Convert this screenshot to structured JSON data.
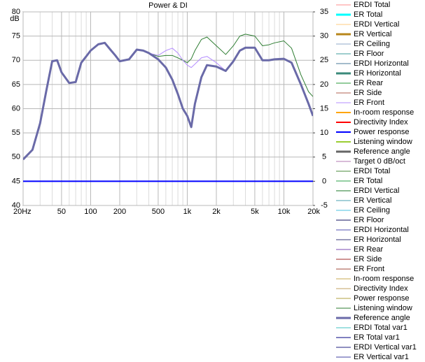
{
  "chart_data": {
    "type": "line",
    "title": "Power & DI",
    "ylabel": "dB",
    "xscale": "log",
    "grid": true,
    "xlim": [
      20,
      20000
    ],
    "xticks": [
      {
        "value": 20,
        "label": "20Hz"
      },
      50,
      100,
      200,
      500,
      {
        "value": 1000,
        "label": "1k"
      },
      {
        "value": 2000,
        "label": "2k"
      },
      {
        "value": 5000,
        "label": "5k"
      },
      {
        "value": 10000,
        "label": "10k"
      },
      {
        "value": 20000,
        "label": "20k"
      }
    ],
    "xminorticks": [
      30,
      40,
      60,
      70,
      80,
      90,
      300,
      400,
      600,
      700,
      800,
      900,
      3000,
      4000,
      6000,
      7000,
      8000,
      9000
    ],
    "ylim": [
      40,
      80
    ],
    "yticks": [
      40,
      45,
      50,
      55,
      60,
      65,
      70,
      75,
      80
    ],
    "y2lim": [
      -5,
      35
    ],
    "y2ticks": [
      -5,
      0,
      5,
      10,
      15,
      20,
      25,
      30,
      35
    ],
    "x": [
      20,
      25,
      30,
      35,
      40,
      45,
      50,
      60,
      70,
      80,
      90,
      100,
      120,
      140,
      160,
      180,
      200,
      250,
      300,
      350,
      400,
      500,
      600,
      700,
      800,
      900,
      1000,
      1100,
      1200,
      1400,
      1600,
      2000,
      2500,
      3000,
      3500,
      4000,
      5000,
      6000,
      7000,
      8000,
      10000,
      12000,
      15000,
      18000,
      20000
    ],
    "series": [
      {
        "name": "ERDI Total",
        "color": "#ff8c8c"
      },
      {
        "name": "ER Total",
        "color": "#00ffff",
        "width": 3
      },
      {
        "name": "ERDI Vertical",
        "color": "#ffcc80"
      },
      {
        "name": "ER Vertical",
        "color": "#b8861b",
        "width": 3
      },
      {
        "name": "ER Ceiling",
        "color": "#8fa8c8"
      },
      {
        "name": "ER Floor",
        "color": "#3c9c9c"
      },
      {
        "name": "ERDI Horizontal",
        "color": "#4a7a9a"
      },
      {
        "name": "ER Horizontal",
        "color": "#3a8a7a",
        "width": 3
      },
      {
        "name": "ER Rear",
        "color": "#2a9a3a"
      },
      {
        "name": "ER Side",
        "color": "#b06050"
      },
      {
        "name": "ER Front",
        "color": "#b48cff",
        "values": [
          49.5,
          51.5,
          57,
          64,
          69.8,
          70,
          67.5,
          65.3,
          65.5,
          69.5,
          70.8,
          72,
          73.3,
          73.6,
          72.2,
          71,
          69.8,
          70.2,
          72.2,
          72,
          71.5,
          71,
          72,
          72.5,
          71.5,
          70,
          69,
          68.5,
          69.2,
          70.5,
          70.8,
          69.5,
          67.8,
          69.8,
          72,
          72.6,
          72.6,
          70,
          70,
          70.2,
          70.3,
          69.5,
          65,
          61,
          58.5
        ]
      },
      {
        "name": "In-room response",
        "color": "#ffa500",
        "width": 2
      },
      {
        "name": "Directivity Index",
        "color": "#ff0000",
        "width": 2
      },
      {
        "name": "Power response",
        "color": "#0000ff",
        "width": 2,
        "values": [
          45,
          45,
          45,
          45,
          45,
          45,
          45,
          45,
          45,
          45,
          45,
          45,
          45,
          45,
          45,
          45,
          45,
          45,
          45,
          45,
          45,
          45,
          45,
          45,
          45,
          45,
          45,
          45,
          45,
          45,
          45,
          45,
          45,
          45,
          45,
          45,
          45,
          45,
          45,
          45,
          45,
          45,
          45,
          45,
          45
        ]
      },
      {
        "name": "Listening window",
        "color": "#9acd32",
        "width": 2
      },
      {
        "name": "Reference angle",
        "color": "#666666",
        "width": 3
      },
      {
        "name": "Target 0 dB/oct",
        "color": "#b07ab0"
      },
      {
        "name": "ERDI Total",
        "color": "#4a8a3a"
      },
      {
        "name": "ER Total",
        "color": "#2aa04a"
      },
      {
        "name": "ERDI Vertical",
        "color": "#1e7a2a"
      },
      {
        "name": "ER Vertical",
        "color": "#4aa0b0"
      },
      {
        "name": "ER Ceiling",
        "color": "#4ac0e0"
      },
      {
        "name": "ER Floor",
        "color": "#101060"
      },
      {
        "name": "ERDI Horizontal",
        "color": "#5050b0"
      },
      {
        "name": "ER Horizontal",
        "color": "#3a3a7a"
      },
      {
        "name": "ER Rear",
        "color": "#7a4ab0"
      },
      {
        "name": "ER Side",
        "color": "#a02a2a"
      },
      {
        "name": "ER Front",
        "color": "#a04a3a"
      },
      {
        "name": "In-room response",
        "color": "#c8a850"
      },
      {
        "name": "Directivity Index",
        "color": "#c0a060"
      },
      {
        "name": "Power response",
        "color": "#b0a040"
      },
      {
        "name": "Listening window",
        "color": "#2e7d32",
        "values": [
          49.5,
          51.5,
          57,
          64,
          69.8,
          70,
          67.5,
          65.3,
          65.5,
          69.5,
          70.8,
          72,
          73.3,
          73.6,
          72.2,
          71,
          69.8,
          70.2,
          72.2,
          72,
          71.5,
          70.8,
          71,
          71,
          70.5,
          70,
          69.5,
          70.3,
          72,
          74.3,
          74.8,
          73,
          71.2,
          73,
          75,
          75.4,
          75,
          73,
          73.2,
          73.6,
          74,
          72.5,
          67,
          63.5,
          62.5
        ]
      },
      {
        "name": "Reference angle",
        "color": "#6a6aa8",
        "width": 3,
        "values": [
          49.5,
          51.5,
          57,
          64,
          69.8,
          70,
          67.5,
          65.3,
          65.5,
          69.5,
          70.8,
          72,
          73.3,
          73.6,
          72.2,
          71,
          69.8,
          70.2,
          72.2,
          72,
          71.5,
          70.2,
          68.5,
          66,
          63,
          60,
          58.5,
          56.2,
          61,
          66.5,
          69,
          68.7,
          67.8,
          69.8,
          72,
          72.6,
          72.6,
          70,
          70,
          70.2,
          70.3,
          69.5,
          65,
          61,
          58.5
        ]
      },
      {
        "name": "ERDI Total  var1",
        "color": "#40c0c0"
      },
      {
        "name": "ER Total  var1",
        "color": "#000080"
      },
      {
        "name": "ERDI Vertical  var1",
        "color": "#202080"
      },
      {
        "name": "ER Vertical  var1",
        "color": "#4040a0"
      }
    ]
  }
}
